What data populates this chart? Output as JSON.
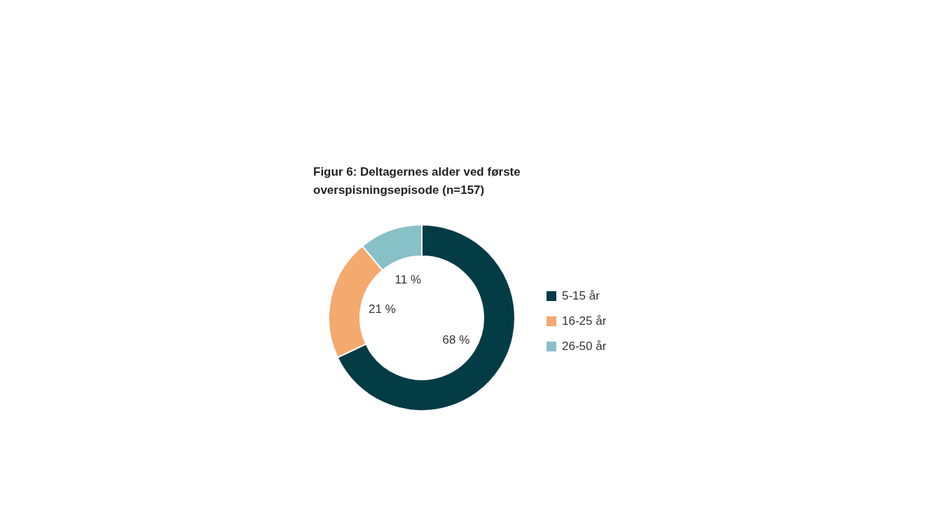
{
  "chart_data": {
    "type": "donut",
    "title": "Figur 6: Deltagernes alder ved første overspisningsepisode (n=157)",
    "categories": [
      "5-15 år",
      "16-25 år",
      "26-50 år"
    ],
    "values": [
      68,
      21,
      11
    ],
    "value_labels": [
      "68 %",
      "21 %",
      "11 %"
    ],
    "colors": [
      "#033c45",
      "#f4a96f",
      "#88c0c8"
    ],
    "legend": "right"
  }
}
